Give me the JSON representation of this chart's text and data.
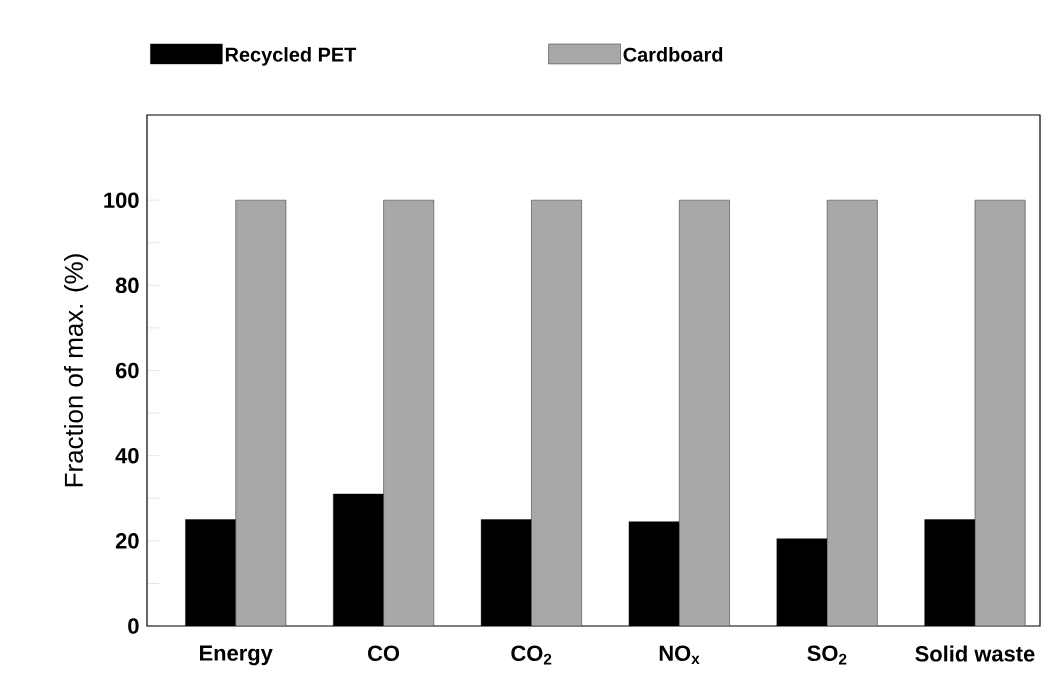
{
  "chart_data": {
    "type": "bar",
    "ylabel": "Fraction of max. (%)",
    "categories": [
      "Energy",
      "CO",
      "CO$_{2}$",
      "NO$_{x}$",
      "SO$_{2}$",
      "Solid waste"
    ],
    "series": [
      {
        "name": "Recycled PET",
        "color": "#000000",
        "values": [
          25,
          31,
          25,
          24.5,
          20.5,
          25
        ]
      },
      {
        "name": "Cardboard",
        "color": "#a8a8a8",
        "values": [
          100,
          100,
          100,
          100,
          100,
          100
        ]
      }
    ],
    "ylim": [
      0,
      120
    ],
    "yticks": [
      0,
      {
        "value": 10,
        "label": null
      },
      20,
      {
        "value": 30,
        "label": null
      },
      40,
      {
        "value": 50,
        "label": null
      },
      60,
      {
        "value": 70,
        "label": null
      },
      80,
      {
        "value": 90,
        "label": null
      },
      100
    ],
    "legend": "top",
    "grid": false
  }
}
